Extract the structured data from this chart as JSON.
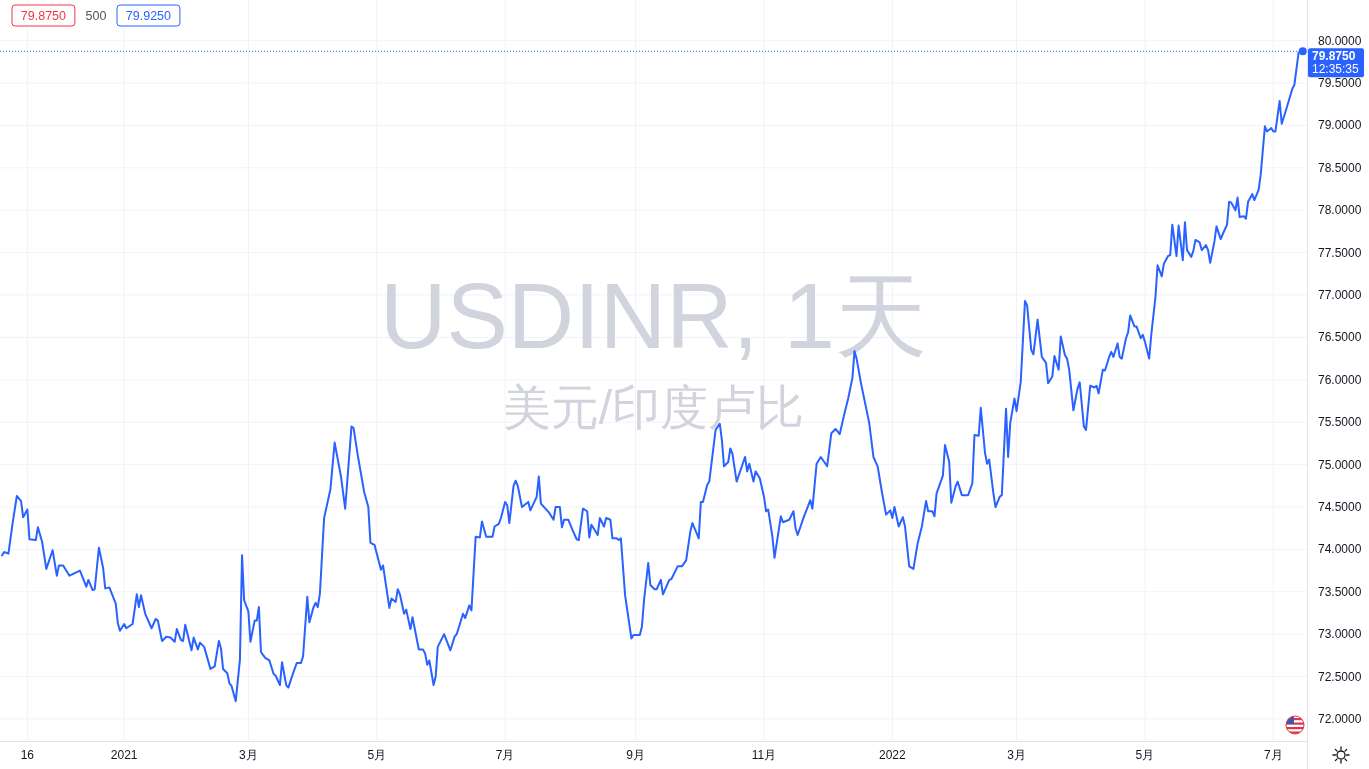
{
  "chart_data": {
    "type": "line",
    "title": "USDINR, 1天",
    "subtitle": "美元/印度卢比",
    "xlim": [
      "2020-11-03",
      "2022-07-17"
    ],
    "xticks": [
      {
        "value": "2020-11-16",
        "label": "16"
      },
      {
        "value": "2021-01-01",
        "label": "2021"
      },
      {
        "value": "2021-03-01",
        "label": "3月"
      },
      {
        "value": "2021-05-01",
        "label": "5月"
      },
      {
        "value": "2021-07-01",
        "label": "7月"
      },
      {
        "value": "2021-09-01",
        "label": "9月"
      },
      {
        "value": "2021-11-01",
        "label": "11月"
      },
      {
        "value": "2022-01-01",
        "label": "2022"
      },
      {
        "value": "2022-03-01",
        "label": "3月"
      },
      {
        "value": "2022-05-01",
        "label": "5月"
      },
      {
        "value": "2022-07-01",
        "label": "7月"
      }
    ],
    "ylim": [
      71.74,
      80.48
    ],
    "yticks": [
      {
        "value": 72,
        "label": "72.0000"
      },
      {
        "value": 72.5,
        "label": "72.5000"
      },
      {
        "value": 73,
        "label": "73.0000"
      },
      {
        "value": 73.5,
        "label": "73.5000"
      },
      {
        "value": 74,
        "label": "74.0000"
      },
      {
        "value": 74.5,
        "label": "74.5000"
      },
      {
        "value": 75,
        "label": "75.0000"
      },
      {
        "value": 75.5,
        "label": "75.5000"
      },
      {
        "value": 76,
        "label": "76.0000"
      },
      {
        "value": 76.5,
        "label": "76.5000"
      },
      {
        "value": 77,
        "label": "77.0000"
      },
      {
        "value": 77.5,
        "label": "77.5000"
      },
      {
        "value": 78,
        "label": "78.0000"
      },
      {
        "value": 78.5,
        "label": "78.5000"
      },
      {
        "value": 79,
        "label": "79.0000"
      },
      {
        "value": 79.5,
        "label": "79.5000"
      },
      {
        "value": 80,
        "label": "80.0000"
      }
    ],
    "grid": true,
    "series": [
      {
        "color": "#2962ff",
        "x": [
          "2020-11-04",
          "2020-11-05",
          "2020-11-07",
          "2020-11-09",
          "2020-11-11",
          "2020-11-13",
          "2020-11-14",
          "2020-11-16",
          "2020-11-17",
          "2020-11-20",
          "2020-11-21",
          "2020-11-23",
          "2020-11-25",
          "2020-11-28",
          "2020-11-30",
          "2020-12-01",
          "2020-12-03",
          "2020-12-06",
          "2020-12-11",
          "2020-12-14",
          "2020-12-15",
          "2020-12-17",
          "2020-12-18",
          "2020-12-20",
          "2020-12-22",
          "2020-12-23",
          "2020-12-25",
          "2020-12-28",
          "2020-12-29",
          "2020-12-30",
          "2021-01-01",
          "2021-01-02",
          "2021-01-05",
          "2021-01-07",
          "2021-01-08",
          "2021-01-09",
          "2021-01-11",
          "2021-01-14",
          "2021-01-16",
          "2021-01-17",
          "2021-01-19",
          "2021-01-21",
          "2021-01-23",
          "2021-01-25",
          "2021-01-26",
          "2021-01-28",
          "2021-01-29",
          "2021-01-30",
          "2021-02-02",
          "2021-02-03",
          "2021-02-05",
          "2021-02-06",
          "2021-02-08",
          "2021-02-11",
          "2021-02-13",
          "2021-02-15",
          "2021-02-16",
          "2021-02-17",
          "2021-02-19",
          "2021-02-20",
          "2021-02-21",
          "2021-02-23",
          "2021-02-25",
          "2021-02-26",
          "2021-02-27",
          "2021-03-01",
          "2021-03-02",
          "2021-03-04",
          "2021-03-05",
          "2021-03-06",
          "2021-03-07",
          "2021-03-09",
          "2021-03-11",
          "2021-03-13",
          "2021-03-14",
          "2021-03-16",
          "2021-03-17",
          "2021-03-19",
          "2021-03-20",
          "2021-03-22",
          "2021-03-24",
          "2021-03-26",
          "2021-03-27",
          "2021-03-29",
          "2021-03-30",
          "2021-04-01",
          "2021-04-02",
          "2021-04-03",
          "2021-04-04",
          "2021-04-06",
          "2021-04-09",
          "2021-04-11",
          "2021-04-14",
          "2021-04-16",
          "2021-04-19",
          "2021-04-20",
          "2021-04-22",
          "2021-04-25",
          "2021-04-27",
          "2021-04-28",
          "2021-04-30",
          "2021-05-03",
          "2021-05-04",
          "2021-05-07",
          "2021-05-08",
          "2021-05-10",
          "2021-05-11",
          "2021-05-12",
          "2021-05-14",
          "2021-05-15",
          "2021-05-17",
          "2021-05-18",
          "2021-05-21",
          "2021-05-23",
          "2021-05-24",
          "2021-05-25",
          "2021-05-26",
          "2021-05-28",
          "2021-05-29",
          "2021-05-30",
          "2021-06-02",
          "2021-06-05",
          "2021-06-07",
          "2021-06-08",
          "2021-06-11",
          "2021-06-12",
          "2021-06-14",
          "2021-06-15",
          "2021-06-17",
          "2021-06-19",
          "2021-06-20",
          "2021-06-22",
          "2021-06-25",
          "2021-06-26",
          "2021-06-28",
          "2021-06-29",
          "2021-07-01",
          "2021-07-02",
          "2021-07-03",
          "2021-07-05",
          "2021-07-06",
          "2021-07-07",
          "2021-07-09",
          "2021-07-12",
          "2021-07-13",
          "2021-07-16",
          "2021-07-17",
          "2021-07-18",
          "2021-07-22",
          "2021-07-24",
          "2021-07-25",
          "2021-07-27",
          "2021-07-28",
          "2021-07-29",
          "2021-07-31",
          "2021-08-02",
          "2021-08-04",
          "2021-08-05",
          "2021-08-07",
          "2021-08-09",
          "2021-08-10",
          "2021-08-11",
          "2021-08-14",
          "2021-08-15",
          "2021-08-17",
          "2021-08-18",
          "2021-08-20",
          "2021-08-21",
          "2021-08-23",
          "2021-08-24",
          "2021-08-25",
          "2021-08-27",
          "2021-08-28",
          "2021-08-30",
          "2021-08-31",
          "2021-09-03",
          "2021-09-04",
          "2021-09-05",
          "2021-09-07",
          "2021-09-08",
          "2021-09-10",
          "2021-09-11",
          "2021-09-13",
          "2021-09-14",
          "2021-09-17",
          "2021-09-18",
          "2021-09-21",
          "2021-09-23",
          "2021-09-25",
          "2021-09-27",
          "2021-09-28",
          "2021-10-01",
          "2021-10-02",
          "2021-10-03",
          "2021-10-05",
          "2021-10-06",
          "2021-10-09",
          "2021-10-11",
          "2021-10-12",
          "2021-10-13",
          "2021-10-15",
          "2021-10-16",
          "2021-10-17",
          "2021-10-19",
          "2021-10-23",
          "2021-10-24",
          "2021-10-25",
          "2021-10-27",
          "2021-10-28",
          "2021-10-30",
          "2021-11-01",
          "2021-11-02",
          "2021-11-03",
          "2021-11-05",
          "2021-11-06",
          "2021-11-09",
          "2021-11-10",
          "2021-11-13",
          "2021-11-15",
          "2021-11-16",
          "2021-11-17",
          "2021-11-20",
          "2021-11-21",
          "2021-11-23",
          "2021-11-24",
          "2021-11-26",
          "2021-11-28",
          "2021-12-01",
          "2021-12-03",
          "2021-12-05",
          "2021-12-07",
          "2021-12-09",
          "2021-12-11",
          "2021-12-13",
          "2021-12-14",
          "2021-12-15",
          "2021-12-17",
          "2021-12-21",
          "2021-12-23",
          "2021-12-25",
          "2021-12-27",
          "2021-12-29",
          "2021-12-31",
          "2022-01-01",
          "2022-01-02",
          "2022-01-04",
          "2022-01-06",
          "2022-01-07",
          "2022-01-09",
          "2022-01-11",
          "2022-01-13",
          "2022-01-15",
          "2022-01-17",
          "2022-01-18",
          "2022-01-20",
          "2022-01-21",
          "2022-01-22",
          "2022-01-25",
          "2022-01-26",
          "2022-01-28",
          "2022-01-29",
          "2022-01-31",
          "2022-02-01",
          "2022-02-03",
          "2022-02-06",
          "2022-02-08",
          "2022-02-09",
          "2022-02-11",
          "2022-02-12",
          "2022-02-14",
          "2022-02-15",
          "2022-02-16",
          "2022-02-18",
          "2022-02-19",
          "2022-02-21",
          "2022-02-22",
          "2022-02-24",
          "2022-02-25",
          "2022-02-26",
          "2022-02-28",
          "2022-03-01",
          "2022-03-03",
          "2022-03-05",
          "2022-03-06",
          "2022-03-08",
          "2022-03-09",
          "2022-03-11",
          "2022-03-13",
          "2022-03-15",
          "2022-03-16",
          "2022-03-18",
          "2022-03-19",
          "2022-03-21",
          "2022-03-22",
          "2022-03-24",
          "2022-03-25",
          "2022-03-26",
          "2022-03-28",
          "2022-03-30",
          "2022-03-31",
          "2022-04-02",
          "2022-04-03",
          "2022-04-05",
          "2022-04-07",
          "2022-04-08",
          "2022-04-09",
          "2022-04-11",
          "2022-04-12",
          "2022-04-14",
          "2022-04-15",
          "2022-04-16",
          "2022-04-18",
          "2022-04-19",
          "2022-04-20",
          "2022-04-22",
          "2022-04-23",
          "2022-04-24",
          "2022-04-26",
          "2022-04-27",
          "2022-04-29",
          "2022-04-30",
          "2022-05-01",
          "2022-05-03",
          "2022-05-04",
          "2022-05-06",
          "2022-05-07",
          "2022-05-09",
          "2022-05-10",
          "2022-05-12",
          "2022-05-13",
          "2022-05-14",
          "2022-05-16",
          "2022-05-17",
          "2022-05-19",
          "2022-05-20",
          "2022-05-21",
          "2022-05-23",
          "2022-05-24",
          "2022-05-25",
          "2022-05-27",
          "2022-05-28",
          "2022-05-30",
          "2022-05-31",
          "2022-06-01",
          "2022-06-03",
          "2022-06-04",
          "2022-06-06",
          "2022-06-07",
          "2022-06-09",
          "2022-06-10",
          "2022-06-11",
          "2022-06-13",
          "2022-06-14",
          "2022-06-15",
          "2022-06-17",
          "2022-06-18",
          "2022-06-19",
          "2022-06-21",
          "2022-06-22",
          "2022-06-24",
          "2022-06-25",
          "2022-06-27",
          "2022-06-28",
          "2022-06-30",
          "2022-07-01",
          "2022-07-02",
          "2022-07-04",
          "2022-07-05",
          "2022-07-07",
          "2022-07-10",
          "2022-07-11",
          "2022-07-13",
          "2022-07-15"
        ],
        "values": [
          73.93,
          73.97,
          73.95,
          74.31,
          74.63,
          74.57,
          74.38,
          74.47,
          74.12,
          74.11,
          74.26,
          74.09,
          73.77,
          73.99,
          73.69,
          73.81,
          73.81,
          73.69,
          73.75,
          73.56,
          73.64,
          73.52,
          73.53,
          74.02,
          73.78,
          73.54,
          73.55,
          73.36,
          73.13,
          73.04,
          73.12,
          73.07,
          73.12,
          73.47,
          73.32,
          73.46,
          73.24,
          73.07,
          73.18,
          73.16,
          72.92,
          72.97,
          72.96,
          72.91,
          73.06,
          72.93,
          72.92,
          73.11,
          72.81,
          72.96,
          72.82,
          72.9,
          72.85,
          72.59,
          72.62,
          72.92,
          72.83,
          72.59,
          72.54,
          72.42,
          72.39,
          72.21,
          72.7,
          73.93,
          73.4,
          73.27,
          72.91,
          73.16,
          73.16,
          73.32,
          72.79,
          72.72,
          72.69,
          72.53,
          72.51,
          72.4,
          72.67,
          72.4,
          72.37,
          72.52,
          72.66,
          72.66,
          72.74,
          73.44,
          73.14,
          73.32,
          73.37,
          73.32,
          73.48,
          74.37,
          74.71,
          75.26,
          74.86,
          74.48,
          75.45,
          75.43,
          75.11,
          74.68,
          74.5,
          74.08,
          74.05,
          73.76,
          73.81,
          73.31,
          73.42,
          73.38,
          73.53,
          73.47,
          73.24,
          73.29,
          73.06,
          73.2,
          72.82,
          72.82,
          72.77,
          72.64,
          72.69,
          72.4,
          72.5,
          72.85,
          73.0,
          72.81,
          72.97,
          73.0,
          73.24,
          73.19,
          73.34,
          73.28,
          74.15,
          74.14,
          74.33,
          74.15,
          74.15,
          74.27,
          74.3,
          74.37,
          74.56,
          74.52,
          74.31,
          74.75,
          74.81,
          74.75,
          74.5,
          74.56,
          74.46,
          74.62,
          74.86,
          74.54,
          74.43,
          74.35,
          74.5,
          74.5,
          74.26,
          74.35,
          74.35,
          74.23,
          74.12,
          74.11,
          74.48,
          74.45,
          74.14,
          74.29,
          74.17,
          74.37,
          74.27,
          74.37,
          74.35,
          74.13,
          74.13,
          74.11,
          74.13,
          73.46,
          73.29,
          72.95,
          72.99,
          72.99,
          73.09,
          73.4,
          73.84,
          73.58,
          73.53,
          73.53,
          73.64,
          73.47,
          73.64,
          73.65,
          73.8,
          73.8,
          73.87,
          74.21,
          74.31,
          74.13,
          74.56,
          74.56,
          74.76,
          74.8,
          75.41,
          75.48,
          75.29,
          74.98,
          75.03,
          75.19,
          75.13,
          74.8,
          75.09,
          74.92,
          75.01,
          74.8,
          74.92,
          74.84,
          74.62,
          74.45,
          74.47,
          74.15,
          73.9,
          74.39,
          74.32,
          74.35,
          74.45,
          74.25,
          74.17,
          74.39,
          74.45,
          74.58,
          74.48,
          75.01,
          75.09,
          74.98,
          75.37,
          75.42,
          75.36,
          75.58,
          75.78,
          76.02,
          76.34,
          76.25,
          75.97,
          75.49,
          75.09,
          74.98,
          74.68,
          74.41,
          74.46,
          74.37,
          74.5,
          74.27,
          74.38,
          74.27,
          73.8,
          73.77,
          74.07,
          74.27,
          74.57,
          74.45,
          74.45,
          74.39,
          74.66,
          74.87,
          75.23,
          75.03,
          74.55,
          74.74,
          74.8,
          74.64,
          74.64,
          74.78,
          75.35,
          75.34,
          75.67,
          75.14,
          75.01,
          75.06,
          74.66,
          74.5,
          74.62,
          74.64,
          75.66,
          75.09,
          75.49,
          75.78,
          75.63,
          75.98,
          76.93,
          76.88,
          76.35,
          76.3,
          76.71,
          76.27,
          76.2,
          75.96,
          76.04,
          76.28,
          76.12,
          76.51,
          76.29,
          76.25,
          76.12,
          75.64,
          75.9,
          75.97,
          75.45,
          75.41,
          75.93,
          75.91,
          75.93,
          75.84,
          76.12,
          76.11,
          76.27,
          76.33,
          76.27,
          76.43,
          76.27,
          76.25,
          76.49,
          76.56,
          76.76,
          76.63,
          76.63,
          76.49,
          76.53,
          76.45,
          76.25,
          76.53,
          76.98,
          77.35,
          77.22,
          77.37,
          77.46,
          77.47,
          77.83,
          77.46,
          77.82,
          77.41,
          77.86,
          77.53,
          77.45,
          77.52,
          77.65,
          77.62,
          77.53,
          77.59,
          77.53,
          77.38,
          77.63,
          77.81,
          77.66,
          77.72,
          77.83,
          78.1,
          78.09,
          78.0,
          78.15,
          77.92,
          77.93,
          77.9,
          78.1,
          78.19,
          78.12,
          78.24,
          78.42,
          78.99,
          78.93,
          78.97,
          78.93,
          78.93,
          79.29,
          79.02,
          79.18,
          79.43,
          79.48,
          79.86,
          79.875
        ]
      },
      {
        "type": "scatter",
        "color": "#2962ff",
        "marker": "circle",
        "x": [
          "2022-07-15"
        ],
        "values": [
          79.875
        ]
      }
    ],
    "ref_lines": [
      {
        "axis": "y",
        "value": 79.875,
        "label": "79.8750",
        "color": "#2962ff",
        "line_style": "dotted"
      }
    ],
    "annotations": [
      "79.8750",
      "500",
      "79.9250",
      "12:35:35"
    ]
  }
}
